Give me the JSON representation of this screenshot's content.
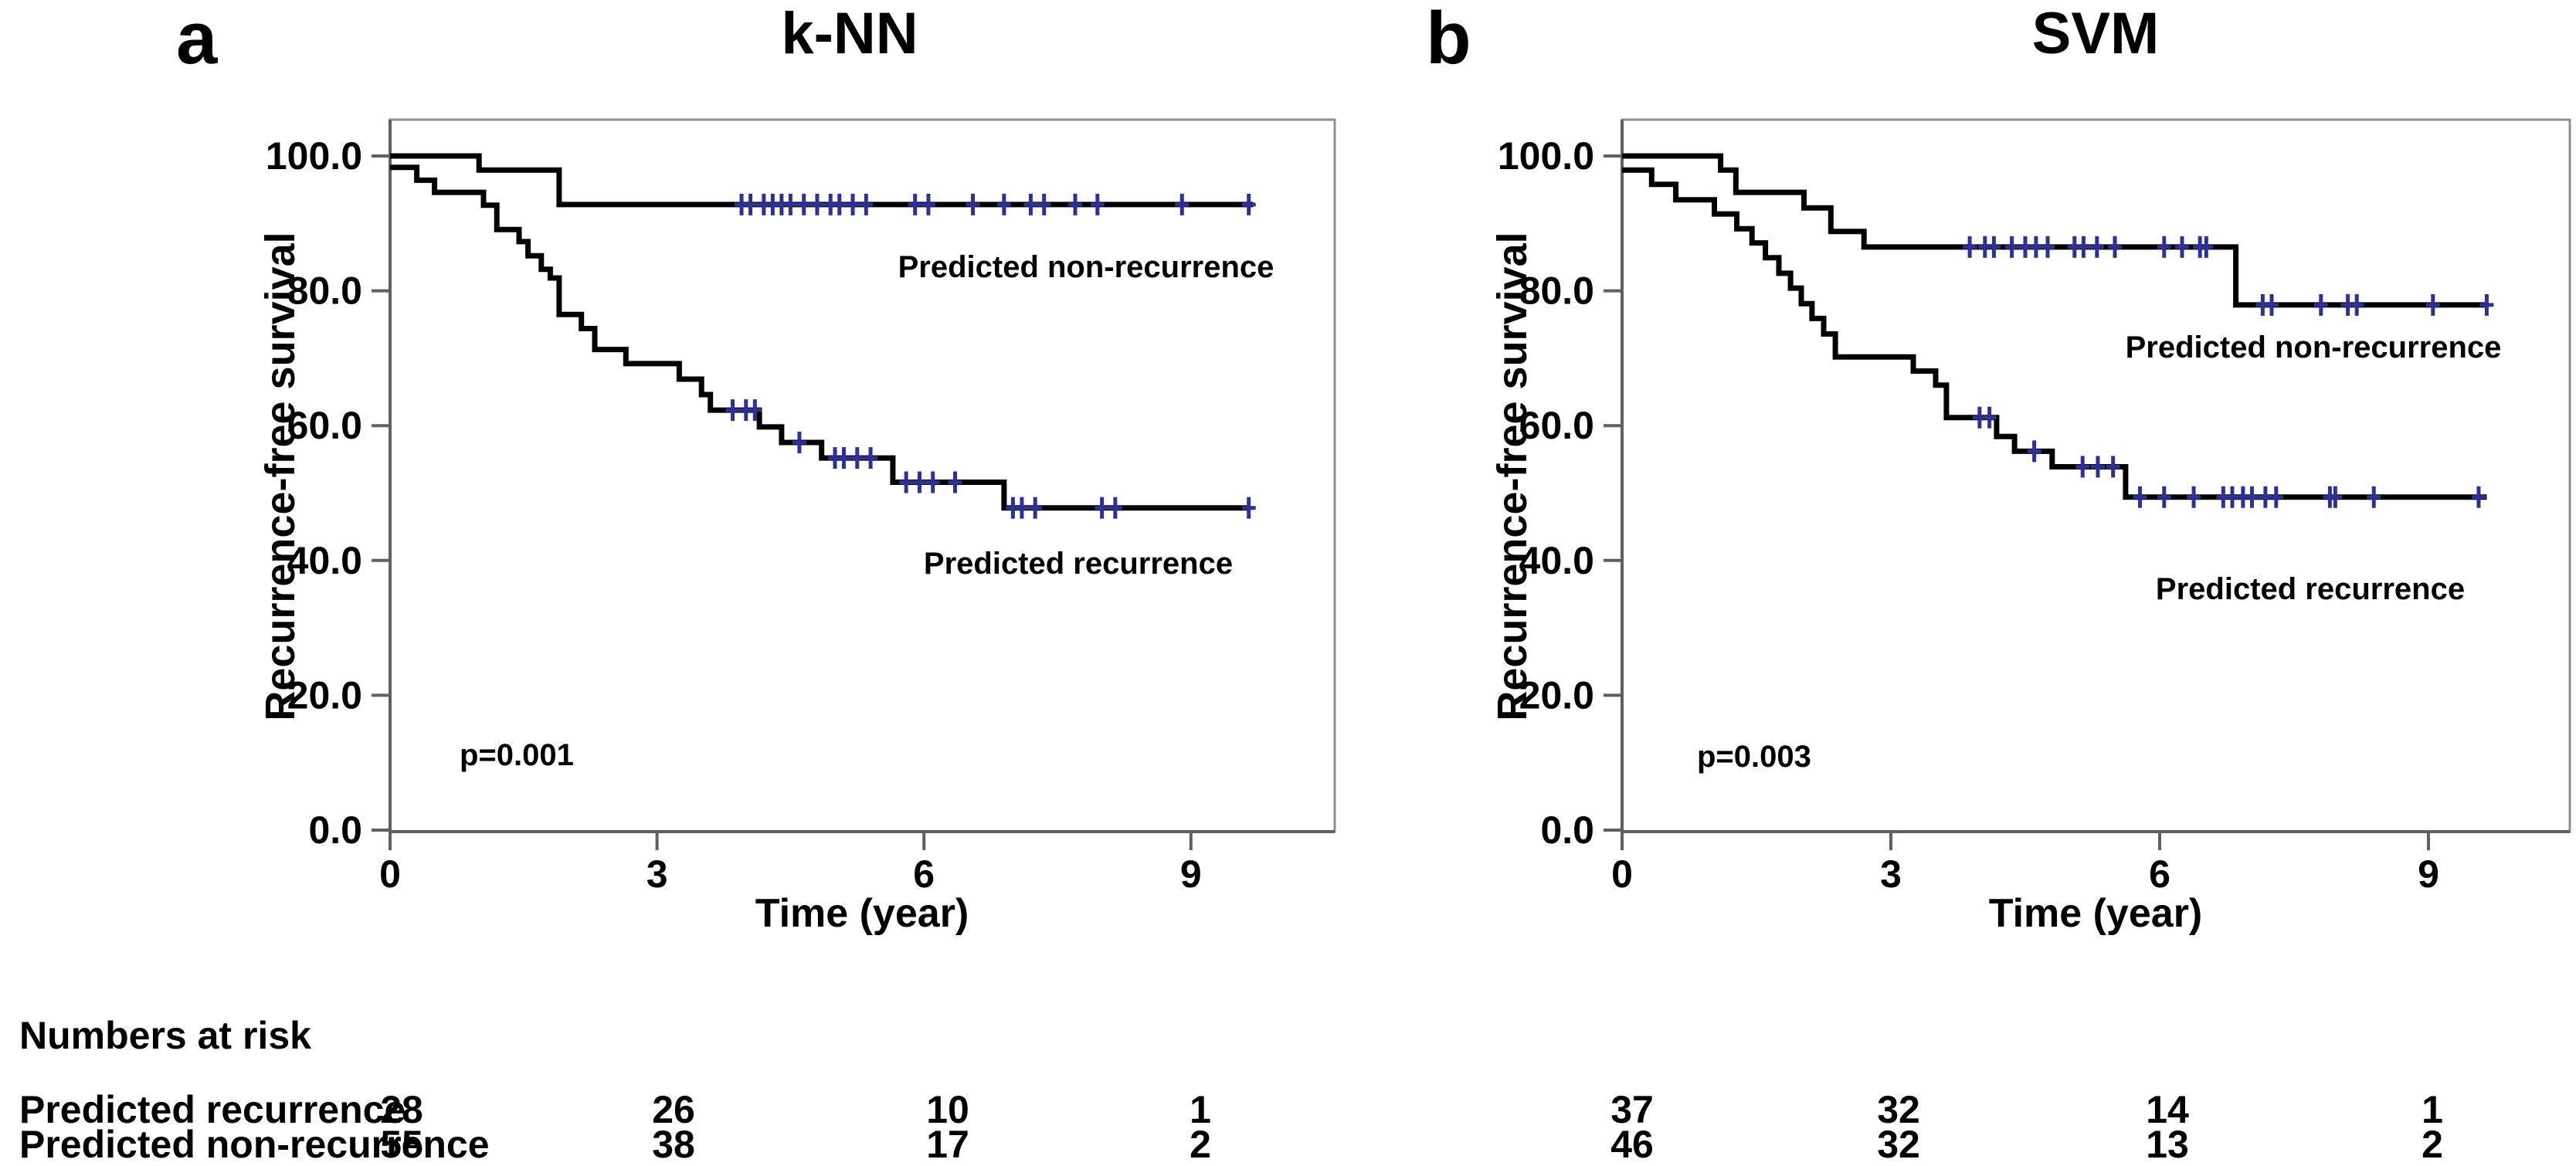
{
  "figure": {
    "panels": [
      {
        "letter": "a",
        "title": "k-NN",
        "y_axis_label": "Recurrence-free survival",
        "x_axis_label": "Time (year)",
        "p_value": "p=0.001"
      },
      {
        "letter": "b",
        "title": "SVM",
        "y_axis_label": "Recurrence-free survival",
        "x_axis_label": "Time (year)",
        "p_value": "p=0.003"
      }
    ],
    "risk_table": {
      "header": "Numbers at risk",
      "times": [
        0,
        3,
        6,
        9
      ],
      "rows": [
        {
          "label": "Predicted recurrence",
          "panel_a": [
            "28",
            "26",
            "10",
            "1"
          ],
          "panel_b": [
            "37",
            "32",
            "14",
            "1"
          ]
        },
        {
          "label": "Predicted non-recurrence",
          "panel_a": [
            "55",
            "38",
            "17",
            "2"
          ],
          "panel_b": [
            "46",
            "32",
            "13",
            "2"
          ]
        }
      ]
    },
    "colors": {
      "curve": "#000000",
      "censor_mark": "#2e3192",
      "frame": "#8f8f8f",
      "axis": "#606060"
    }
  },
  "chart_data": [
    {
      "type": "line",
      "subtype": "kaplan_meier_step",
      "title": "k-NN",
      "xlabel": "Time (year)",
      "ylabel": "Recurrence-free survival",
      "xlim": [
        0,
        10.6
      ],
      "ylim": [
        0,
        105.5
      ],
      "xticks": [
        0,
        3,
        6,
        9
      ],
      "xtick_labels": [
        "0",
        "3",
        "6",
        "9"
      ],
      "yticks": [
        0,
        20,
        40,
        60,
        80,
        100
      ],
      "ytick_labels": [
        "0.0",
        "20.0",
        "40.0",
        "60.0",
        "80.0",
        "100.0"
      ],
      "grid": false,
      "legend_position": "in-plot-labels",
      "p_value": "p=0.001",
      "curve_color": "#000000",
      "censor_color": "#2e3192",
      "numbers_at_risk": {
        "times": [
          0,
          3,
          6,
          9
        ],
        "Predicted recurrence": [
          28,
          26,
          10,
          1
        ],
        "Predicted non-recurrence": [
          55,
          38,
          17,
          2
        ]
      },
      "series": [
        {
          "name": "Predicted non-recurrence",
          "steps": [
            [
              0,
              100
            ],
            [
              1.0,
              100
            ],
            [
              1.0,
              97.9
            ],
            [
              1.9,
              97.9
            ],
            [
              1.9,
              92.8
            ],
            [
              9.7,
              92.8
            ]
          ],
          "censor_marks": [
            [
              3.95,
              92.8
            ],
            [
              4.05,
              92.8
            ],
            [
              4.2,
              92.8
            ],
            [
              4.3,
              92.8
            ],
            [
              4.4,
              92.8
            ],
            [
              4.5,
              92.8
            ],
            [
              4.65,
              92.8
            ],
            [
              4.8,
              92.8
            ],
            [
              4.95,
              92.8
            ],
            [
              5.05,
              92.8
            ],
            [
              5.2,
              92.8
            ],
            [
              5.35,
              92.8
            ],
            [
              5.9,
              92.8
            ],
            [
              6.05,
              92.8
            ],
            [
              6.55,
              92.8
            ],
            [
              6.9,
              92.8
            ],
            [
              7.2,
              92.8
            ],
            [
              7.35,
              92.8
            ],
            [
              7.7,
              92.8
            ],
            [
              7.95,
              92.8
            ],
            [
              8.9,
              92.8
            ],
            [
              9.65,
              92.8
            ]
          ]
        },
        {
          "name": "Predicted recurrence",
          "steps": [
            [
              0,
              98.3
            ],
            [
              0.3,
              98.3
            ],
            [
              0.3,
              96.4
            ],
            [
              0.5,
              96.4
            ],
            [
              0.5,
              94.6
            ],
            [
              1.05,
              94.6
            ],
            [
              1.05,
              92.7
            ],
            [
              1.2,
              92.7
            ],
            [
              1.2,
              89.1
            ],
            [
              1.45,
              89.1
            ],
            [
              1.45,
              87.3
            ],
            [
              1.55,
              87.3
            ],
            [
              1.55,
              85.2
            ],
            [
              1.7,
              85.2
            ],
            [
              1.7,
              83.2
            ],
            [
              1.8,
              83.2
            ],
            [
              1.8,
              81.9
            ],
            [
              1.9,
              81.9
            ],
            [
              1.9,
              76.5
            ],
            [
              2.15,
              76.5
            ],
            [
              2.15,
              74.4
            ],
            [
              2.3,
              74.4
            ],
            [
              2.3,
              71.3
            ],
            [
              2.65,
              71.3
            ],
            [
              2.65,
              69.2
            ],
            [
              3.25,
              69.2
            ],
            [
              3.25,
              66.9
            ],
            [
              3.5,
              66.9
            ],
            [
              3.5,
              64.6
            ],
            [
              3.6,
              64.6
            ],
            [
              3.6,
              62.3
            ],
            [
              4.15,
              62.3
            ],
            [
              4.15,
              59.8
            ],
            [
              4.4,
              59.8
            ],
            [
              4.4,
              57.5
            ],
            [
              4.85,
              57.5
            ],
            [
              4.85,
              55.2
            ],
            [
              5.65,
              55.2
            ],
            [
              5.65,
              51.6
            ],
            [
              6.9,
              51.6
            ],
            [
              6.9,
              47.8
            ],
            [
              9.65,
              47.8
            ]
          ],
          "censor_marks": [
            [
              3.85,
              62.3
            ],
            [
              4.0,
              62.3
            ],
            [
              4.1,
              62.3
            ],
            [
              4.6,
              57.5
            ],
            [
              5.0,
              55.2
            ],
            [
              5.1,
              55.2
            ],
            [
              5.25,
              55.2
            ],
            [
              5.4,
              55.2
            ],
            [
              5.8,
              51.6
            ],
            [
              5.95,
              51.6
            ],
            [
              6.1,
              51.6
            ],
            [
              6.35,
              51.6
            ],
            [
              7.0,
              47.8
            ],
            [
              7.1,
              47.8
            ],
            [
              7.25,
              47.8
            ],
            [
              8.0,
              47.8
            ],
            [
              8.15,
              47.8
            ],
            [
              9.65,
              47.8
            ]
          ]
        }
      ]
    },
    {
      "type": "line",
      "subtype": "kaplan_meier_step",
      "title": "SVM",
      "xlabel": "Time (year)",
      "ylabel": "Recurrence-free survival",
      "xlim": [
        0,
        10.6
      ],
      "ylim": [
        0,
        105.5
      ],
      "xticks": [
        0,
        3,
        6,
        9
      ],
      "xtick_labels": [
        "0",
        "3",
        "6",
        "9"
      ],
      "yticks": [
        0,
        20,
        40,
        60,
        80,
        100
      ],
      "ytick_labels": [
        "0.0",
        "20.0",
        "40.0",
        "60.0",
        "80.0",
        "100.0"
      ],
      "grid": false,
      "legend_position": "in-plot-labels",
      "p_value": "p=0.003",
      "curve_color": "#000000",
      "censor_color": "#2e3192",
      "numbers_at_risk": {
        "times": [
          0,
          3,
          6,
          9
        ],
        "Predicted recurrence": [
          37,
          32,
          14,
          1
        ],
        "Predicted non-recurrence": [
          46,
          32,
          13,
          2
        ]
      },
      "series": [
        {
          "name": "Predicted non-recurrence",
          "steps": [
            [
              0,
              100
            ],
            [
              1.1,
              100
            ],
            [
              1.1,
              97.9
            ],
            [
              1.27,
              97.9
            ],
            [
              1.27,
              94.6
            ],
            [
              2.03,
              94.6
            ],
            [
              2.03,
              92.3
            ],
            [
              2.33,
              92.3
            ],
            [
              2.33,
              88.8
            ],
            [
              2.7,
              88.8
            ],
            [
              2.7,
              86.5
            ],
            [
              6.85,
              86.5
            ],
            [
              6.85,
              77.9
            ],
            [
              9.65,
              77.9
            ]
          ],
          "censor_marks": [
            [
              3.88,
              86.5
            ],
            [
              4.05,
              86.5
            ],
            [
              4.15,
              86.5
            ],
            [
              4.35,
              86.5
            ],
            [
              4.5,
              86.5
            ],
            [
              4.62,
              86.5
            ],
            [
              4.75,
              86.5
            ],
            [
              5.05,
              86.5
            ],
            [
              5.15,
              86.5
            ],
            [
              5.3,
              86.5
            ],
            [
              5.5,
              86.5
            ],
            [
              6.05,
              86.5
            ],
            [
              6.25,
              86.5
            ],
            [
              6.45,
              86.5
            ],
            [
              6.52,
              86.5
            ],
            [
              7.15,
              77.9
            ],
            [
              7.25,
              77.9
            ],
            [
              7.8,
              77.9
            ],
            [
              8.1,
              77.9
            ],
            [
              8.2,
              77.9
            ],
            [
              9.05,
              77.9
            ],
            [
              9.65,
              77.9
            ]
          ]
        },
        {
          "name": "Predicted recurrence",
          "steps": [
            [
              0,
              97.9
            ],
            [
              0.33,
              97.9
            ],
            [
              0.33,
              95.8
            ],
            [
              0.6,
              95.8
            ],
            [
              0.6,
              93.5
            ],
            [
              1.03,
              93.5
            ],
            [
              1.03,
              91.4
            ],
            [
              1.28,
              91.4
            ],
            [
              1.28,
              89.2
            ],
            [
              1.45,
              89.2
            ],
            [
              1.45,
              87.1
            ],
            [
              1.6,
              87.1
            ],
            [
              1.6,
              84.9
            ],
            [
              1.75,
              84.9
            ],
            [
              1.75,
              82.6
            ],
            [
              1.88,
              82.6
            ],
            [
              1.88,
              80.4
            ],
            [
              2.0,
              80.4
            ],
            [
              2.0,
              78.1
            ],
            [
              2.12,
              78.1
            ],
            [
              2.12,
              75.9
            ],
            [
              2.25,
              75.9
            ],
            [
              2.25,
              73.6
            ],
            [
              2.38,
              73.6
            ],
            [
              2.38,
              70.2
            ],
            [
              3.25,
              70.2
            ],
            [
              3.25,
              68.1
            ],
            [
              3.5,
              68.1
            ],
            [
              3.5,
              66.0
            ],
            [
              3.62,
              66.0
            ],
            [
              3.62,
              61.2
            ],
            [
              4.18,
              61.2
            ],
            [
              4.18,
              58.4
            ],
            [
              4.38,
              58.4
            ],
            [
              4.38,
              56.2
            ],
            [
              4.8,
              56.2
            ],
            [
              4.8,
              53.9
            ],
            [
              5.62,
              53.9
            ],
            [
              5.62,
              49.4
            ],
            [
              9.65,
              49.4
            ]
          ],
          "censor_marks": [
            [
              3.99,
              61.2
            ],
            [
              4.1,
              61.2
            ],
            [
              4.6,
              56.2
            ],
            [
              5.14,
              53.9
            ],
            [
              5.31,
              53.9
            ],
            [
              5.48,
              53.9
            ],
            [
              5.78,
              49.4
            ],
            [
              6.05,
              49.4
            ],
            [
              6.38,
              49.4
            ],
            [
              6.71,
              49.4
            ],
            [
              6.81,
              49.4
            ],
            [
              6.93,
              49.4
            ],
            [
              7.03,
              49.4
            ],
            [
              7.18,
              49.4
            ],
            [
              7.3,
              49.4
            ],
            [
              7.9,
              49.4
            ],
            [
              7.96,
              49.4
            ],
            [
              8.39,
              49.4
            ],
            [
              9.56,
              49.4
            ]
          ]
        }
      ]
    }
  ]
}
